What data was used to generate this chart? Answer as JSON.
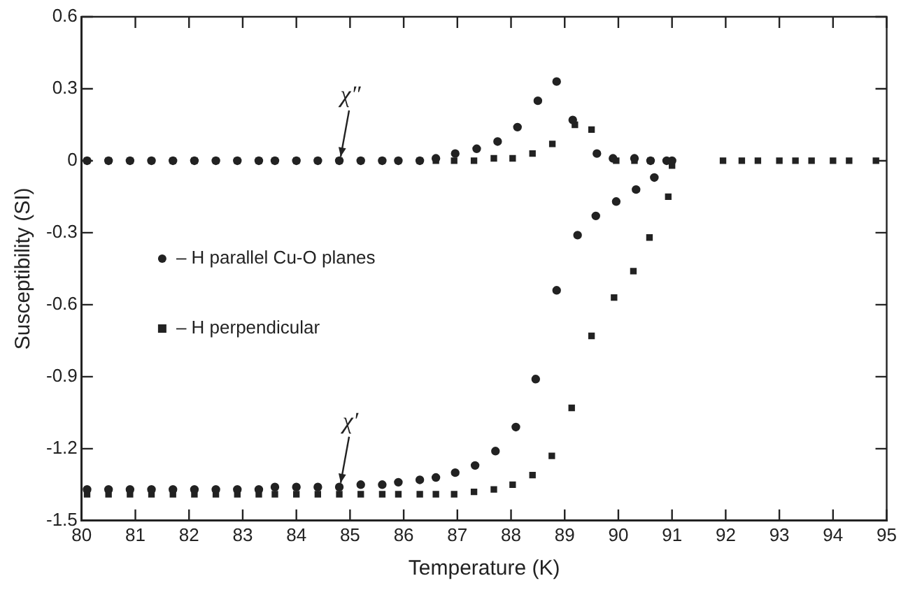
{
  "chart_data": {
    "type": "scatter",
    "xlabel": "Temperature (K)",
    "ylabel": "Susceptibility (SI)",
    "xlim": [
      80,
      95
    ],
    "xticks": [
      80,
      81,
      82,
      83,
      84,
      85,
      86,
      87,
      88,
      89,
      90,
      91,
      92,
      93,
      94,
      95
    ],
    "ylim": [
      -1.5,
      0.6
    ],
    "yticks": [
      -1.5,
      -1.2,
      -0.9,
      -0.6,
      -0.3,
      0,
      0.3,
      0.6
    ],
    "grid": false,
    "legend": "left",
    "annotations": [
      {
        "text": "χ″",
        "x": 84.8,
        "y": 0
      },
      {
        "text": "χ′",
        "x": 84.8,
        "y": -1.36
      }
    ],
    "series": [
      {
        "name": "– H parallel Cu-O planes",
        "color": "#222222",
        "marker": "circle",
        "x": [
          80.1,
          80.5,
          80.9,
          81.3,
          81.7,
          82.1,
          82.5,
          82.9,
          83.3,
          83.6,
          84.0,
          84.4,
          84.8,
          85.2,
          85.6,
          85.9,
          86.3,
          86.6,
          86.96,
          87.36,
          87.75,
          88.12,
          88.5,
          88.85,
          89.15,
          89.6,
          89.9,
          90.3,
          90.6,
          90.9
        ],
        "values": [
          0,
          0,
          0,
          0,
          0,
          0,
          0,
          0,
          0,
          0,
          0,
          0,
          0,
          0,
          0,
          0,
          0,
          0.01,
          0.03,
          0.05,
          0.08,
          0.14,
          0.25,
          0.33,
          0.17,
          0.03,
          0.01,
          0.01,
          0,
          0
        ]
      },
      {
        "color": "#222222",
        "marker": "circle",
        "x": [
          80.1,
          80.5,
          80.9,
          81.3,
          81.7,
          82.1,
          82.5,
          82.9,
          83.3,
          83.6,
          84.0,
          84.4,
          84.8,
          85.2,
          85.6,
          85.9,
          86.3,
          86.6,
          86.96,
          87.33,
          87.71,
          88.09,
          88.46,
          88.85,
          89.24,
          89.58,
          89.96,
          90.33,
          90.67,
          91.0
        ],
        "values": [
          -1.37,
          -1.37,
          -1.37,
          -1.37,
          -1.37,
          -1.37,
          -1.37,
          -1.37,
          -1.37,
          -1.36,
          -1.36,
          -1.36,
          -1.36,
          -1.35,
          -1.35,
          -1.34,
          -1.33,
          -1.32,
          -1.3,
          -1.27,
          -1.21,
          -1.11,
          -0.91,
          -0.54,
          -0.31,
          -0.23,
          -0.17,
          -0.12,
          -0.07,
          0
        ]
      },
      {
        "name": "– H perpendicular",
        "color": "#222222",
        "marker": "square",
        "x": [
          80.1,
          80.5,
          80.9,
          81.3,
          81.7,
          82.1,
          82.5,
          82.9,
          83.3,
          83.6,
          84.0,
          84.4,
          84.8,
          85.2,
          85.6,
          85.9,
          86.3,
          86.6,
          86.94,
          87.31,
          87.68,
          88.03,
          88.4,
          88.77,
          89.19,
          89.5,
          89.96,
          90.3,
          90.6,
          91.0,
          91.95,
          92.3,
          92.6,
          93.0,
          93.3,
          93.6,
          94.0,
          94.3,
          94.8
        ],
        "values": [
          0,
          0,
          0,
          0,
          0,
          0,
          0,
          0,
          0,
          0,
          0,
          0,
          0,
          0,
          0,
          0,
          0,
          0,
          0,
          0,
          0.01,
          0.01,
          0.03,
          0.07,
          0.15,
          0.13,
          0,
          0,
          0,
          -0.02,
          0,
          0,
          0,
          0,
          0,
          0,
          0,
          0,
          0
        ]
      },
      {
        "color": "#222222",
        "marker": "square",
        "x": [
          80.1,
          80.5,
          80.9,
          81.3,
          81.7,
          82.1,
          82.5,
          82.9,
          83.3,
          83.6,
          84.0,
          84.4,
          84.8,
          85.2,
          85.6,
          85.9,
          86.3,
          86.6,
          86.94,
          87.31,
          87.68,
          88.03,
          88.4,
          88.76,
          89.13,
          89.5,
          89.92,
          90.28,
          90.58,
          90.93
        ],
        "values": [
          -1.39,
          -1.39,
          -1.39,
          -1.39,
          -1.39,
          -1.39,
          -1.39,
          -1.39,
          -1.39,
          -1.39,
          -1.39,
          -1.39,
          -1.39,
          -1.39,
          -1.39,
          -1.39,
          -1.39,
          -1.39,
          -1.39,
          -1.38,
          -1.37,
          -1.35,
          -1.31,
          -1.23,
          -1.03,
          -0.73,
          -0.57,
          -0.46,
          -0.32,
          -0.15
        ]
      }
    ]
  }
}
